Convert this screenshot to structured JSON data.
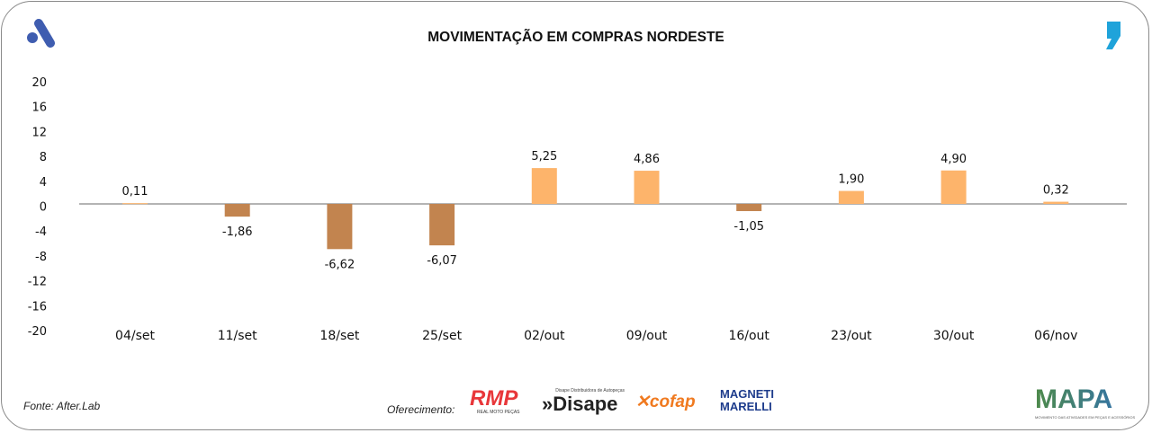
{
  "header": {
    "title": "MOVIMENTAÇÃO EM COMPRAS NORDESTE"
  },
  "footer": {
    "source": "Fonte: After.Lab",
    "sponsor_label": "Oferecimento:",
    "sponsors": [
      "RMP Real Moto Peças",
      "Disape Distribuidora de Autopeças",
      "cofap",
      "Magneti Marelli"
    ],
    "brand": "MAPA",
    "brand_subtitle": "MOVIMENTO DAS ATIVIDADES EM PEÇAS E ACESSÓRIOS"
  },
  "colors": {
    "positive": "#FDB46B",
    "negative": "#C2844F",
    "logo_blue": "#3F5DB0",
    "comma_blue": "#1FA3DA"
  },
  "chart_data": {
    "type": "bar",
    "title": "MOVIMENTAÇÃO EM COMPRAS NORDESTE",
    "categories": [
      "04/set",
      "11/set",
      "18/set",
      "25/set",
      "02/out",
      "09/out",
      "16/out",
      "23/out",
      "30/out",
      "06/nov"
    ],
    "values": [
      0.11,
      -1.86,
      -6.62,
      -6.07,
      5.25,
      4.86,
      -1.05,
      1.9,
      4.9,
      0.32
    ],
    "labels": [
      "0,11",
      "-1,86",
      "-6,62",
      "-6,07",
      "5,25",
      "4,86",
      "-1,05",
      "1,90",
      "4,90",
      "0,32"
    ],
    "yticks": [
      "20",
      "16",
      "12",
      "8",
      "4",
      "0",
      "-4",
      "-8",
      "-12",
      "-16",
      "-20"
    ],
    "ylim": [
      -20,
      20
    ],
    "xlabel": "",
    "ylabel": "",
    "grid": false
  }
}
